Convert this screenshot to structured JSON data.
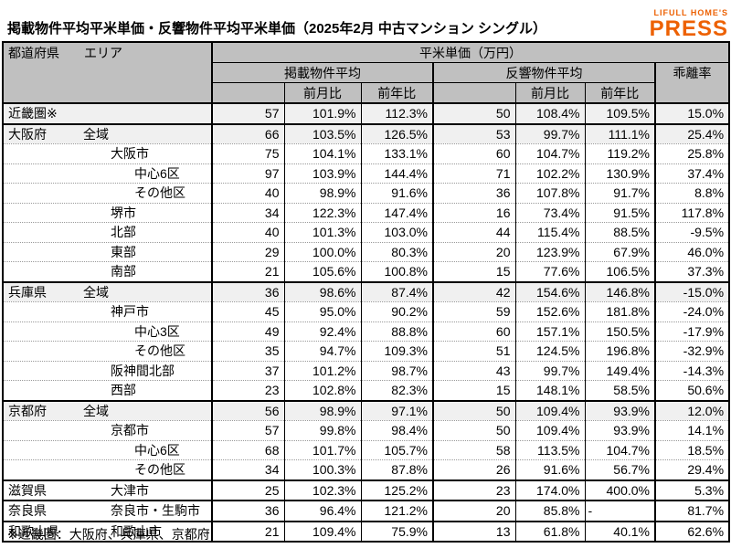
{
  "title": "掲載物件平均平米単価・反響物件平均平米単価（2025年2月 中古マンション シングル）",
  "logo": {
    "line1": "LIFULL HOME'S",
    "line2": "PRESS"
  },
  "colors": {
    "logo_orange": "#ED6103",
    "header_bg": "#c0c0c0",
    "tint_row_bg": "#f0f0f0",
    "border": "#000000"
  },
  "table": {
    "header_pref": "都道府県",
    "header_area": "エリア",
    "unit_header": "平米単価（万円）",
    "group_listed": "掲載物件平均",
    "group_response": "反響物件平均",
    "deviation": "乖離率",
    "mom": "前月比",
    "yoy": "前年比",
    "rows": [
      {
        "pref": "近畿圏※",
        "area": "",
        "indent": 1,
        "tint": true,
        "thick": true,
        "values": [
          "57",
          "101.9%",
          "112.3%",
          "50",
          "108.4%",
          "109.5%",
          "15.0%"
        ]
      },
      {
        "pref": "大阪府",
        "area": "全域",
        "indent": 1,
        "tint": true,
        "thick": false,
        "values": [
          "66",
          "103.5%",
          "126.5%",
          "53",
          "99.7%",
          "111.1%",
          "25.4%"
        ]
      },
      {
        "pref": "",
        "area": "大阪市",
        "indent": 2,
        "tint": false,
        "thick": false,
        "values": [
          "75",
          "104.1%",
          "133.1%",
          "60",
          "104.7%",
          "119.2%",
          "25.8%"
        ]
      },
      {
        "pref": "",
        "area": "中心6区",
        "indent": 3,
        "tint": false,
        "thick": false,
        "values": [
          "97",
          "103.9%",
          "144.4%",
          "71",
          "102.2%",
          "130.9%",
          "37.4%"
        ]
      },
      {
        "pref": "",
        "area": "その他区",
        "indent": 3,
        "tint": false,
        "thick": false,
        "values": [
          "40",
          "98.9%",
          "91.6%",
          "36",
          "107.8%",
          "91.7%",
          "8.8%"
        ]
      },
      {
        "pref": "",
        "area": "堺市",
        "indent": 2,
        "tint": false,
        "thick": false,
        "values": [
          "34",
          "122.3%",
          "147.4%",
          "16",
          "73.4%",
          "91.5%",
          "117.8%"
        ]
      },
      {
        "pref": "",
        "area": "北部",
        "indent": 2,
        "tint": false,
        "thick": false,
        "values": [
          "40",
          "101.3%",
          "103.0%",
          "44",
          "115.4%",
          "88.5%",
          "-9.5%"
        ]
      },
      {
        "pref": "",
        "area": "東部",
        "indent": 2,
        "tint": false,
        "thick": false,
        "values": [
          "29",
          "100.0%",
          "80.3%",
          "20",
          "123.9%",
          "67.9%",
          "46.0%"
        ]
      },
      {
        "pref": "",
        "area": "南部",
        "indent": 2,
        "tint": false,
        "thick": true,
        "values": [
          "21",
          "105.6%",
          "100.8%",
          "15",
          "77.6%",
          "106.5%",
          "37.3%"
        ]
      },
      {
        "pref": "兵庫県",
        "area": "全域",
        "indent": 1,
        "tint": true,
        "thick": false,
        "values": [
          "36",
          "98.6%",
          "87.4%",
          "42",
          "154.6%",
          "146.8%",
          "-15.0%"
        ]
      },
      {
        "pref": "",
        "area": "神戸市",
        "indent": 2,
        "tint": false,
        "thick": false,
        "values": [
          "45",
          "95.0%",
          "90.2%",
          "59",
          "152.6%",
          "181.8%",
          "-24.0%"
        ]
      },
      {
        "pref": "",
        "area": "中心3区",
        "indent": 3,
        "tint": false,
        "thick": false,
        "values": [
          "49",
          "92.4%",
          "88.8%",
          "60",
          "157.1%",
          "150.5%",
          "-17.9%"
        ]
      },
      {
        "pref": "",
        "area": "その他区",
        "indent": 3,
        "tint": false,
        "thick": false,
        "values": [
          "35",
          "94.7%",
          "109.3%",
          "51",
          "124.5%",
          "196.8%",
          "-32.9%"
        ]
      },
      {
        "pref": "",
        "area": "阪神間北部",
        "indent": 2,
        "tint": false,
        "thick": false,
        "values": [
          "37",
          "101.2%",
          "98.7%",
          "43",
          "99.7%",
          "149.4%",
          "-14.3%"
        ]
      },
      {
        "pref": "",
        "area": "西部",
        "indent": 2,
        "tint": false,
        "thick": true,
        "values": [
          "23",
          "102.8%",
          "82.3%",
          "15",
          "148.1%",
          "58.5%",
          "50.6%"
        ]
      },
      {
        "pref": "京都府",
        "area": "全域",
        "indent": 1,
        "tint": true,
        "thick": false,
        "values": [
          "56",
          "98.9%",
          "97.1%",
          "50",
          "109.4%",
          "93.9%",
          "12.0%"
        ]
      },
      {
        "pref": "",
        "area": "京都市",
        "indent": 2,
        "tint": false,
        "thick": false,
        "values": [
          "57",
          "99.8%",
          "98.4%",
          "50",
          "109.4%",
          "93.9%",
          "14.1%"
        ]
      },
      {
        "pref": "",
        "area": "中心6区",
        "indent": 3,
        "tint": false,
        "thick": false,
        "values": [
          "68",
          "101.7%",
          "105.7%",
          "58",
          "113.5%",
          "104.7%",
          "18.5%"
        ]
      },
      {
        "pref": "",
        "area": "その他区",
        "indent": 3,
        "tint": false,
        "thick": true,
        "values": [
          "34",
          "100.3%",
          "87.8%",
          "26",
          "91.6%",
          "56.7%",
          "29.4%"
        ]
      },
      {
        "pref": "滋賀県",
        "area": "大津市",
        "indent": 2,
        "tint": false,
        "thick": true,
        "values": [
          "25",
          "102.3%",
          "125.2%",
          "23",
          "174.0%",
          "400.0%",
          "5.3%"
        ]
      },
      {
        "pref": "奈良県",
        "area": "奈良市・生駒市",
        "indent": 2,
        "tint": false,
        "thick": true,
        "values": [
          "36",
          "96.4%",
          "121.2%",
          "20",
          "85.8%",
          "-",
          "81.7%"
        ]
      },
      {
        "pref": "和歌山県",
        "area": "和歌山市",
        "indent": 2,
        "tint": false,
        "thick": true,
        "values": [
          "21",
          "109.4%",
          "75.9%",
          "13",
          "61.8%",
          "40.1%",
          "62.6%"
        ]
      }
    ]
  },
  "footnote": "※近畿圏：大阪府、兵庫県、京都府",
  "chart_data": {
    "type": "table",
    "title": "掲載物件平均平米単価・反響物件平均平米単価（2025年2月 中古マンション シングル）",
    "columns": [
      "都道府県",
      "エリア",
      "掲載物件平均 平米単価(万円)",
      "掲載 前月比",
      "掲載 前年比",
      "反響物件平均 平米単価(万円)",
      "反響 前月比",
      "反響 前年比",
      "乖離率"
    ],
    "rows": [
      [
        "近畿圏※",
        "",
        "57",
        "101.9%",
        "112.3%",
        "50",
        "108.4%",
        "109.5%",
        "15.0%"
      ],
      [
        "大阪府",
        "全域",
        "66",
        "103.5%",
        "126.5%",
        "53",
        "99.7%",
        "111.1%",
        "25.4%"
      ],
      [
        "大阪府",
        "大阪市",
        "75",
        "104.1%",
        "133.1%",
        "60",
        "104.7%",
        "119.2%",
        "25.8%"
      ],
      [
        "大阪府",
        "大阪市 中心6区",
        "97",
        "103.9%",
        "144.4%",
        "71",
        "102.2%",
        "130.9%",
        "37.4%"
      ],
      [
        "大阪府",
        "大阪市 その他区",
        "40",
        "98.9%",
        "91.6%",
        "36",
        "107.8%",
        "91.7%",
        "8.8%"
      ],
      [
        "大阪府",
        "堺市",
        "34",
        "122.3%",
        "147.4%",
        "16",
        "73.4%",
        "91.5%",
        "117.8%"
      ],
      [
        "大阪府",
        "北部",
        "40",
        "101.3%",
        "103.0%",
        "44",
        "115.4%",
        "88.5%",
        "-9.5%"
      ],
      [
        "大阪府",
        "東部",
        "29",
        "100.0%",
        "80.3%",
        "20",
        "123.9%",
        "67.9%",
        "46.0%"
      ],
      [
        "大阪府",
        "南部",
        "21",
        "105.6%",
        "100.8%",
        "15",
        "77.6%",
        "106.5%",
        "37.3%"
      ],
      [
        "兵庫県",
        "全域",
        "36",
        "98.6%",
        "87.4%",
        "42",
        "154.6%",
        "146.8%",
        "-15.0%"
      ],
      [
        "兵庫県",
        "神戸市",
        "45",
        "95.0%",
        "90.2%",
        "59",
        "152.6%",
        "181.8%",
        "-24.0%"
      ],
      [
        "兵庫県",
        "神戸市 中心3区",
        "49",
        "92.4%",
        "88.8%",
        "60",
        "157.1%",
        "150.5%",
        "-17.9%"
      ],
      [
        "兵庫県",
        "神戸市 その他区",
        "35",
        "94.7%",
        "109.3%",
        "51",
        "124.5%",
        "196.8%",
        "-32.9%"
      ],
      [
        "兵庫県",
        "阪神間北部",
        "37",
        "101.2%",
        "98.7%",
        "43",
        "99.7%",
        "149.4%",
        "-14.3%"
      ],
      [
        "兵庫県",
        "西部",
        "23",
        "102.8%",
        "82.3%",
        "15",
        "148.1%",
        "58.5%",
        "50.6%"
      ],
      [
        "京都府",
        "全域",
        "56",
        "98.9%",
        "97.1%",
        "50",
        "109.4%",
        "93.9%",
        "12.0%"
      ],
      [
        "京都府",
        "京都市",
        "57",
        "99.8%",
        "98.4%",
        "50",
        "109.4%",
        "93.9%",
        "14.1%"
      ],
      [
        "京都府",
        "京都市 中心6区",
        "68",
        "101.7%",
        "105.7%",
        "58",
        "113.5%",
        "104.7%",
        "18.5%"
      ],
      [
        "京都府",
        "京都市 その他区",
        "34",
        "100.3%",
        "87.8%",
        "26",
        "91.6%",
        "56.7%",
        "29.4%"
      ],
      [
        "滋賀県",
        "大津市",
        "25",
        "102.3%",
        "125.2%",
        "23",
        "174.0%",
        "400.0%",
        "5.3%"
      ],
      [
        "奈良県",
        "奈良市・生駒市",
        "36",
        "96.4%",
        "121.2%",
        "20",
        "85.8%",
        "-",
        "81.7%"
      ],
      [
        "和歌山県",
        "和歌山市",
        "21",
        "109.4%",
        "75.9%",
        "13",
        "61.8%",
        "40.1%",
        "62.6%"
      ]
    ]
  }
}
